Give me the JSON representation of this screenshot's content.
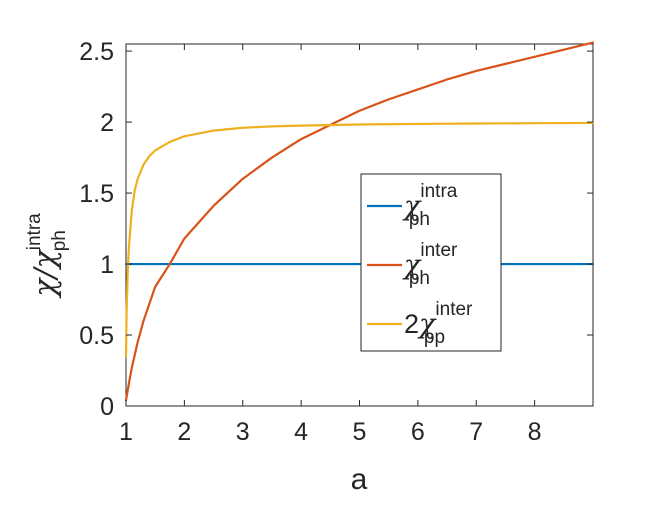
{
  "chart_data": {
    "type": "line",
    "xlabel": "a",
    "ylabel": {
      "lead": "χ/χ",
      "sup": "intra",
      "sub": "ph"
    },
    "xlim": [
      1,
      9
    ],
    "ylim": [
      0,
      2.55
    ],
    "xticks": [
      1,
      2,
      3,
      4,
      5,
      6,
      7,
      8
    ],
    "xtick_labels": [
      "1",
      "2",
      "3",
      "4",
      "5",
      "6",
      "7",
      "8"
    ],
    "yticks": [
      0,
      0.5,
      1,
      1.5,
      2,
      2.5
    ],
    "ytick_labels": [
      "0",
      "0.5",
      "1",
      "1.5",
      "2",
      "2.5"
    ],
    "grid": false,
    "legend_position": "center-right",
    "series": [
      {
        "legend": {
          "prefix": "",
          "symbol": "χ",
          "sup": "intra",
          "sub": "ph"
        },
        "color": "#0072BD",
        "x": [
          1,
          1.5,
          2,
          3,
          4,
          5,
          6,
          7,
          8,
          9
        ],
        "y": [
          1,
          1,
          1,
          1,
          1,
          1,
          1,
          1,
          1,
          1
        ]
      },
      {
        "legend": {
          "prefix": "",
          "symbol": "χ",
          "sup": "inter",
          "sub": "ph"
        },
        "color": "#D95319",
        "x": [
          1.0,
          1.05,
          1.1,
          1.2,
          1.3,
          1.5,
          1.75,
          2,
          2.5,
          3,
          3.5,
          4,
          4.5,
          5,
          5.5,
          6,
          6.5,
          7,
          7.5,
          8,
          8.5,
          9
        ],
        "y": [
          0.04,
          0.16,
          0.27,
          0.45,
          0.6,
          0.84,
          1.0,
          1.18,
          1.41,
          1.6,
          1.75,
          1.88,
          1.98,
          2.08,
          2.16,
          2.23,
          2.3,
          2.36,
          2.41,
          2.46,
          2.51,
          2.56
        ]
      },
      {
        "legend": {
          "prefix": "2",
          "symbol": "χ",
          "sup": "inter",
          "sub": "pp"
        },
        "color": "#EDB120",
        "x": [
          1.0,
          1.01,
          1.03,
          1.05,
          1.1,
          1.15,
          1.2,
          1.3,
          1.4,
          1.5,
          1.75,
          2,
          2.5,
          3,
          3.5,
          4,
          5,
          6,
          7,
          8,
          9
        ],
        "y": [
          0.35,
          0.66,
          0.95,
          1.12,
          1.38,
          1.52,
          1.6,
          1.7,
          1.76,
          1.8,
          1.86,
          1.9,
          1.94,
          1.96,
          1.97,
          1.975,
          1.983,
          1.987,
          1.99,
          1.992,
          1.994
        ]
      }
    ]
  }
}
